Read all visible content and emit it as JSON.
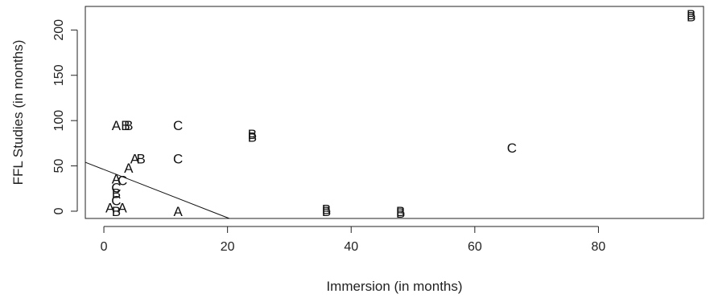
{
  "chart_data": {
    "type": "scatter",
    "title": "",
    "xlabel": "Immersion (in months)",
    "ylabel": "FFL Studies (in months)",
    "xlim": [
      -3,
      97
    ],
    "ylim": [
      -8,
      226
    ],
    "xticks": [
      0,
      20,
      40,
      60,
      80
    ],
    "yticks": [
      0,
      50,
      100,
      150,
      200
    ],
    "xtick_labels": [
      "0",
      "20",
      "40",
      "60",
      "80"
    ],
    "ytick_labels": [
      "0",
      "50",
      "100",
      "150",
      "200"
    ],
    "grid": false,
    "legend": "none",
    "points": [
      {
        "x": 2,
        "y": 95,
        "label": "A"
      },
      {
        "x": 4,
        "y": 95,
        "label": "B"
      },
      {
        "x": 3.5,
        "y": 95,
        "label": "B"
      },
      {
        "x": 12,
        "y": 95,
        "label": "C"
      },
      {
        "x": 24,
        "y": 82,
        "label": "B"
      },
      {
        "x": 24,
        "y": 85,
        "label": "B"
      },
      {
        "x": 66,
        "y": 70,
        "label": "C"
      },
      {
        "x": 95,
        "y": 215,
        "label": "B"
      },
      {
        "x": 95,
        "y": 217,
        "label": "B"
      },
      {
        "x": 5,
        "y": 58,
        "label": "A"
      },
      {
        "x": 6,
        "y": 58,
        "label": "B"
      },
      {
        "x": 12,
        "y": 58,
        "label": "C"
      },
      {
        "x": 4,
        "y": 48,
        "label": "A"
      },
      {
        "x": 2,
        "y": 36,
        "label": "A"
      },
      {
        "x": 3,
        "y": 34,
        "label": "C"
      },
      {
        "x": 2,
        "y": 26,
        "label": "C"
      },
      {
        "x": 2,
        "y": 20,
        "label": "B"
      },
      {
        "x": 2,
        "y": 12,
        "label": "C"
      },
      {
        "x": 1,
        "y": 4,
        "label": "A"
      },
      {
        "x": 3,
        "y": 4,
        "label": "A"
      },
      {
        "x": 2,
        "y": 0,
        "label": "B"
      },
      {
        "x": 12,
        "y": 0,
        "label": "A"
      },
      {
        "x": 36,
        "y": 2,
        "label": "B"
      },
      {
        "x": 36,
        "y": 0,
        "label": "B"
      },
      {
        "x": 48,
        "y": 0,
        "label": "B"
      },
      {
        "x": 48,
        "y": -2,
        "label": "B"
      }
    ],
    "lines": [
      {
        "x1": -3,
        "y1": 54,
        "x2": 20.3,
        "y2": -8
      }
    ]
  }
}
